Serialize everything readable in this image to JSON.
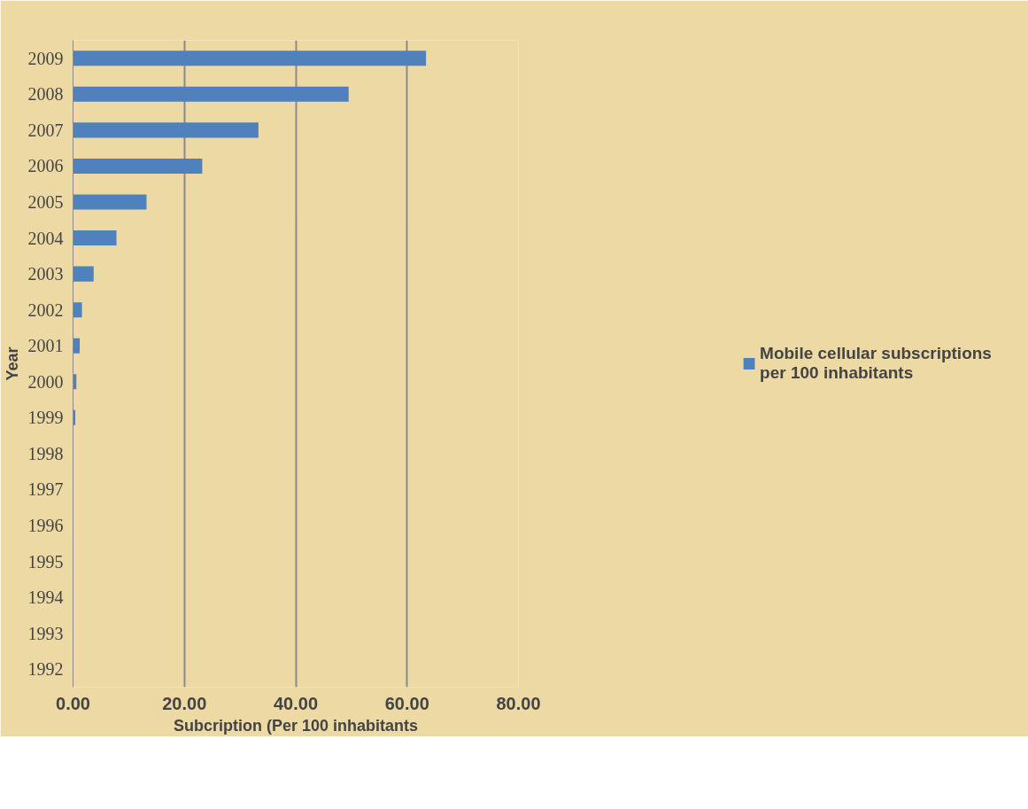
{
  "chart_data": {
    "type": "bar",
    "orientation": "horizontal",
    "xlabel": "Subcription (Per 100 inhabitants",
    "ylabel": "Year",
    "categories": [
      "2009",
      "2008",
      "2007",
      "2006",
      "2005",
      "2004",
      "2003",
      "2002",
      "2001",
      "2000",
      "1999",
      "1998",
      "1997",
      "1996",
      "1995",
      "1994",
      "1993",
      "1992"
    ],
    "series": [
      {
        "name": "Mobile cellular subscriptions per 100 inhabitants",
        "color": "#4f81bd",
        "values": [
          63.4,
          49.5,
          33.3,
          23.2,
          13.2,
          7.8,
          3.7,
          1.6,
          1.2,
          0.6,
          0.4,
          0,
          0,
          0,
          0,
          0,
          0,
          0
        ]
      }
    ],
    "xlim": [
      0,
      80
    ],
    "xticks": [
      {
        "value": 0,
        "label": "0.00"
      },
      {
        "value": 20,
        "label": "20.00"
      },
      {
        "value": 40,
        "label": "40.00"
      },
      {
        "value": 60,
        "label": "60.00"
      },
      {
        "value": 80,
        "label": "80.00"
      }
    ],
    "grid": "x",
    "legend": "right"
  }
}
